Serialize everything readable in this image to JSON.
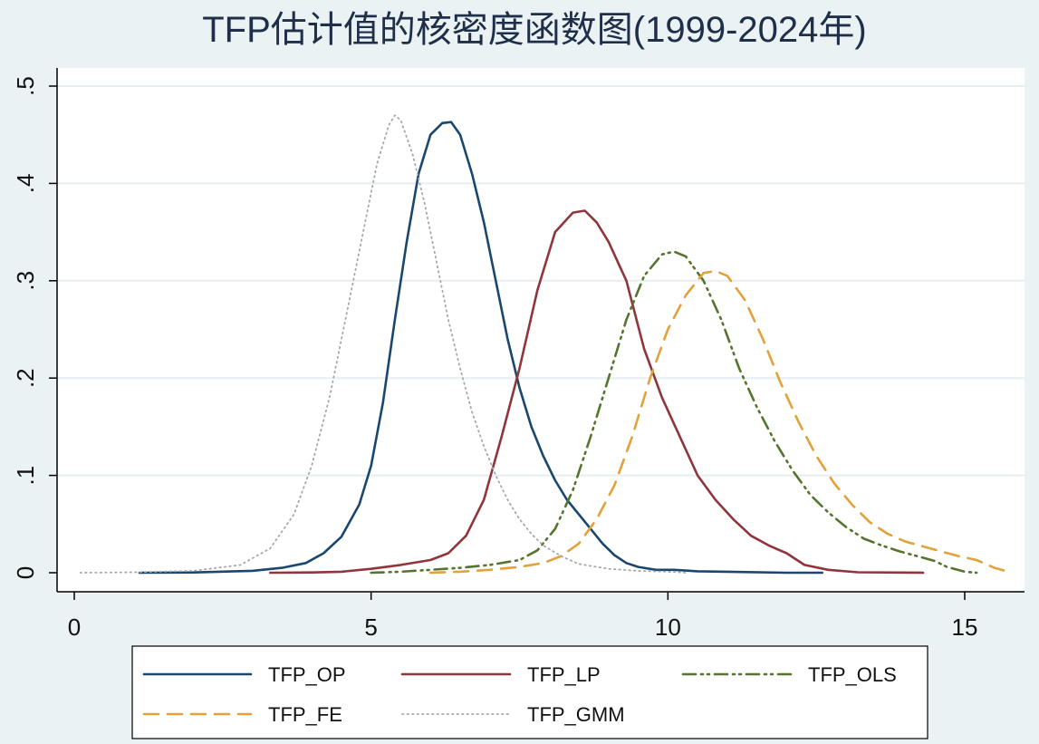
{
  "chart_data": {
    "type": "line",
    "title": "TFP估计值的核密度函数图(1999-2024年)",
    "xlabel": "",
    "ylabel": "",
    "xlim": [
      0,
      16
    ],
    "ylim": [
      0,
      0.5
    ],
    "xticks": [
      0,
      5,
      10,
      15
    ],
    "xtick_labels": [
      "0",
      "5",
      "10",
      "15"
    ],
    "yticks": [
      0,
      0.1,
      0.2,
      0.3,
      0.4,
      0.5
    ],
    "ytick_labels": [
      "0",
      ".1",
      ".2",
      ".3",
      ".4",
      ".5"
    ],
    "grid": "horizontal",
    "legend_position": "bottom",
    "series": [
      {
        "name": "TFP_OP",
        "color": "#1a476f",
        "style": "solid",
        "x": [
          1.1,
          2.0,
          3.0,
          3.5,
          3.9,
          4.2,
          4.5,
          4.8,
          5.0,
          5.2,
          5.4,
          5.6,
          5.8,
          6.0,
          6.2,
          6.35,
          6.5,
          6.7,
          6.9,
          7.1,
          7.3,
          7.5,
          7.7,
          7.9,
          8.1,
          8.3,
          8.5,
          8.7,
          8.9,
          9.1,
          9.3,
          9.5,
          9.8,
          10.1,
          10.5,
          11.0,
          12.0,
          12.6
        ],
        "y": [
          0,
          0.0003,
          0.002,
          0.005,
          0.01,
          0.02,
          0.037,
          0.07,
          0.11,
          0.175,
          0.26,
          0.34,
          0.41,
          0.45,
          0.462,
          0.463,
          0.45,
          0.41,
          0.36,
          0.3,
          0.24,
          0.19,
          0.15,
          0.12,
          0.095,
          0.075,
          0.06,
          0.045,
          0.03,
          0.018,
          0.01,
          0.006,
          0.003,
          0.003,
          0.0015,
          0.001,
          0,
          0
        ]
      },
      {
        "name": "TFP_LP",
        "color": "#90353b",
        "style": "solid",
        "x": [
          3.3,
          4.0,
          4.5,
          5.0,
          5.5,
          6.0,
          6.3,
          6.6,
          6.9,
          7.2,
          7.5,
          7.8,
          8.1,
          8.4,
          8.6,
          8.8,
          9.0,
          9.3,
          9.6,
          9.9,
          10.2,
          10.5,
          10.8,
          11.1,
          11.4,
          11.7,
          12.0,
          12.3,
          12.7,
          13.2,
          14.3
        ],
        "y": [
          0,
          0.0003,
          0.001,
          0.004,
          0.008,
          0.013,
          0.02,
          0.038,
          0.075,
          0.14,
          0.21,
          0.29,
          0.35,
          0.37,
          0.372,
          0.36,
          0.34,
          0.3,
          0.23,
          0.18,
          0.14,
          0.1,
          0.075,
          0.055,
          0.038,
          0.028,
          0.02,
          0.008,
          0.003,
          0.0005,
          0
        ]
      },
      {
        "name": "TFP_OLS",
        "color": "#55752f",
        "style": "dashdotdot",
        "x": [
          5.0,
          5.5,
          6.0,
          6.5,
          7.0,
          7.5,
          7.8,
          8.1,
          8.4,
          8.7,
          9.0,
          9.3,
          9.6,
          9.9,
          10.1,
          10.3,
          10.6,
          10.9,
          11.2,
          11.5,
          11.8,
          12.1,
          12.4,
          12.7,
          13.0,
          13.3,
          13.6,
          13.9,
          14.2,
          14.5,
          14.7,
          15.0,
          15.2
        ],
        "y": [
          0,
          0.001,
          0.003,
          0.005,
          0.008,
          0.013,
          0.023,
          0.045,
          0.085,
          0.14,
          0.2,
          0.26,
          0.305,
          0.327,
          0.33,
          0.325,
          0.3,
          0.26,
          0.21,
          0.17,
          0.135,
          0.105,
          0.08,
          0.062,
          0.047,
          0.035,
          0.028,
          0.022,
          0.017,
          0.012,
          0.006,
          0.001,
          0
        ]
      },
      {
        "name": "TFP_FE",
        "color": "#e3a13b",
        "style": "dashed",
        "x": [
          6.0,
          6.5,
          7.0,
          7.5,
          7.9,
          8.2,
          8.5,
          8.8,
          9.1,
          9.4,
          9.7,
          10.0,
          10.3,
          10.6,
          10.8,
          11.0,
          11.3,
          11.6,
          11.9,
          12.2,
          12.5,
          12.8,
          13.1,
          13.4,
          13.7,
          14.0,
          14.3,
          14.6,
          14.9,
          15.2,
          15.5,
          15.8
        ],
        "y": [
          0,
          0.001,
          0.003,
          0.006,
          0.01,
          0.017,
          0.03,
          0.055,
          0.09,
          0.14,
          0.2,
          0.25,
          0.285,
          0.308,
          0.31,
          0.305,
          0.28,
          0.24,
          0.195,
          0.155,
          0.12,
          0.092,
          0.07,
          0.052,
          0.04,
          0.032,
          0.027,
          0.022,
          0.017,
          0.013,
          0.005,
          0
        ]
      },
      {
        "name": "TFP_GMM",
        "color": "#a8a8a8",
        "style": "dotted",
        "x": [
          0.1,
          1.0,
          2.0,
          2.8,
          3.3,
          3.7,
          4.0,
          4.3,
          4.6,
          4.9,
          5.1,
          5.3,
          5.4,
          5.5,
          5.7,
          5.9,
          6.1,
          6.3,
          6.5,
          6.7,
          6.9,
          7.1,
          7.3,
          7.5,
          7.7,
          7.9,
          8.2,
          8.5,
          9.0,
          9.5,
          10.0,
          10.3
        ],
        "y": [
          0,
          0.0005,
          0.002,
          0.008,
          0.025,
          0.06,
          0.11,
          0.18,
          0.27,
          0.36,
          0.42,
          0.46,
          0.47,
          0.465,
          0.43,
          0.38,
          0.32,
          0.26,
          0.21,
          0.165,
          0.13,
          0.1,
          0.075,
          0.055,
          0.04,
          0.028,
          0.017,
          0.009,
          0.004,
          0.002,
          0.001,
          0
        ]
      }
    ]
  }
}
